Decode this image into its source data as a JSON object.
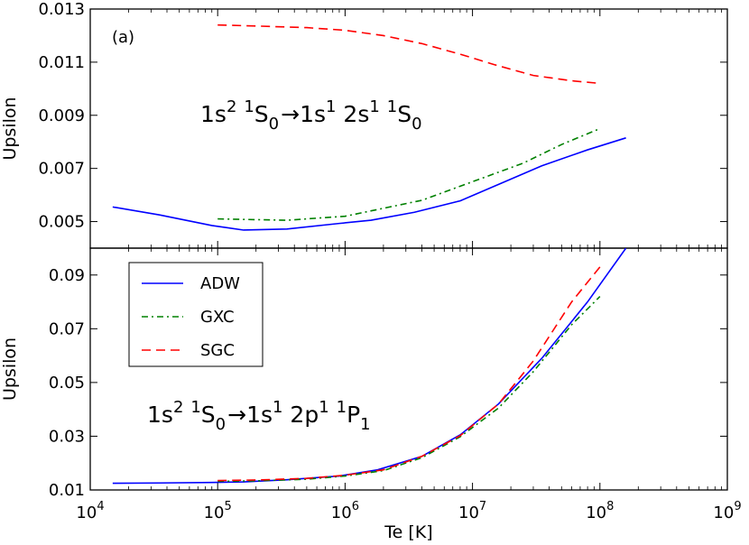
{
  "chart_data": [
    {
      "type": "line",
      "panel_label": "(a)",
      "annotation": {
        "parts": [
          "1s",
          "2",
          " ",
          "1",
          "S",
          "0",
          "→",
          "1s",
          "1",
          " 2s",
          "1",
          " ",
          "1",
          "S",
          "0"
        ]
      },
      "xscale": "log",
      "xlim": [
        10000,
        1000000000
      ],
      "ylim": [
        0.004,
        0.013
      ],
      "ylabel": "Upsilon",
      "yticks": [
        0.005,
        0.007,
        0.009,
        0.011,
        0.013
      ],
      "ytick_labels": [
        "0.005",
        "0.007",
        "0.009",
        "0.011",
        "0.013"
      ],
      "grid": false,
      "series": [
        {
          "key": "ADW",
          "color": "#0000ff",
          "dash": "solid",
          "x": [
            15000,
            35000,
            90000,
            160000,
            350000,
            900000,
            1600000,
            3500000,
            8000000,
            16000000,
            35000000,
            80000000,
            160000000
          ],
          "y": [
            0.00555,
            0.00525,
            0.00485,
            0.00468,
            0.00472,
            0.00493,
            0.00505,
            0.00535,
            0.00578,
            0.0064,
            0.0071,
            0.0077,
            0.00815
          ]
        },
        {
          "key": "GXC",
          "color": "#008000",
          "dash": "dashdot",
          "x": [
            100000,
            350000,
            1000000,
            4000000,
            10000000,
            25000000,
            50000000,
            100000000
          ],
          "y": [
            0.0051,
            0.00505,
            0.0052,
            0.0058,
            0.0065,
            0.0072,
            0.0079,
            0.0085
          ]
        },
        {
          "key": "SGC",
          "color": "#ff0000",
          "dash": "dashed",
          "x": [
            100000,
            200000,
            500000,
            1000000,
            2000000,
            4000000,
            8000000,
            15000000,
            30000000,
            60000000,
            100000000
          ],
          "y": [
            0.0124,
            0.01236,
            0.0123,
            0.0122,
            0.012,
            0.0117,
            0.0113,
            0.0109,
            0.0105,
            0.0103,
            0.0102
          ]
        }
      ]
    },
    {
      "type": "line",
      "annotation": {
        "parts": [
          "1s",
          "2",
          " ",
          "1",
          "S",
          "0",
          "→",
          "1s",
          "1",
          " 2p",
          "1",
          " ",
          "1",
          "P",
          "1"
        ]
      },
      "xscale": "log",
      "xlim": [
        10000,
        1000000000
      ],
      "ylim": [
        0.01,
        0.1
      ],
      "xlabel": "Te [K]",
      "ylabel": "Upsilon",
      "yticks": [
        0.01,
        0.03,
        0.05,
        0.07,
        0.09
      ],
      "ytick_labels": [
        "0.01",
        "0.03",
        "0.05",
        "0.07",
        "0.09"
      ],
      "xticks": [
        10000,
        100000,
        1000000,
        10000000,
        100000000,
        1000000000
      ],
      "xtick_labels": [
        {
          "base": "10",
          "exp": "4"
        },
        {
          "base": "10",
          "exp": "5"
        },
        {
          "base": "10",
          "exp": "6"
        },
        {
          "base": "10",
          "exp": "7"
        },
        {
          "base": "10",
          "exp": "8"
        },
        {
          "base": "10",
          "exp": "9"
        }
      ],
      "grid": false,
      "legend": {
        "position": "upper-left"
      },
      "series": [
        {
          "name": "ADW",
          "color": "#0000ff",
          "dash": "solid",
          "x": [
            15000,
            35000,
            90000,
            160000,
            350000,
            900000,
            1800000,
            4000000,
            8000000,
            16000000,
            35000000,
            80000000,
            160000000
          ],
          "y": [
            0.0125,
            0.0126,
            0.0128,
            0.013,
            0.0138,
            0.0152,
            0.0175,
            0.0225,
            0.0305,
            0.042,
            0.059,
            0.08,
            0.1
          ]
        },
        {
          "name": "GXC",
          "color": "#008000",
          "dash": "dashdot",
          "x": [
            100000,
            200000,
            500000,
            1000000,
            2000000,
            4000000,
            8000000,
            16000000,
            30000000,
            60000000,
            100000000
          ],
          "y": [
            0.0132,
            0.0134,
            0.014,
            0.0152,
            0.0172,
            0.022,
            0.0298,
            0.0405,
            0.054,
            0.0715,
            0.082
          ]
        },
        {
          "name": "SGC",
          "color": "#ff0000",
          "dash": "dashed",
          "x": [
            100000,
            200000,
            500000,
            1000000,
            2000000,
            4000000,
            8000000,
            16000000,
            30000000,
            60000000,
            100000000
          ],
          "y": [
            0.0135,
            0.0137,
            0.0143,
            0.0155,
            0.0175,
            0.0225,
            0.0302,
            0.042,
            0.058,
            0.08,
            0.093
          ]
        }
      ]
    }
  ]
}
